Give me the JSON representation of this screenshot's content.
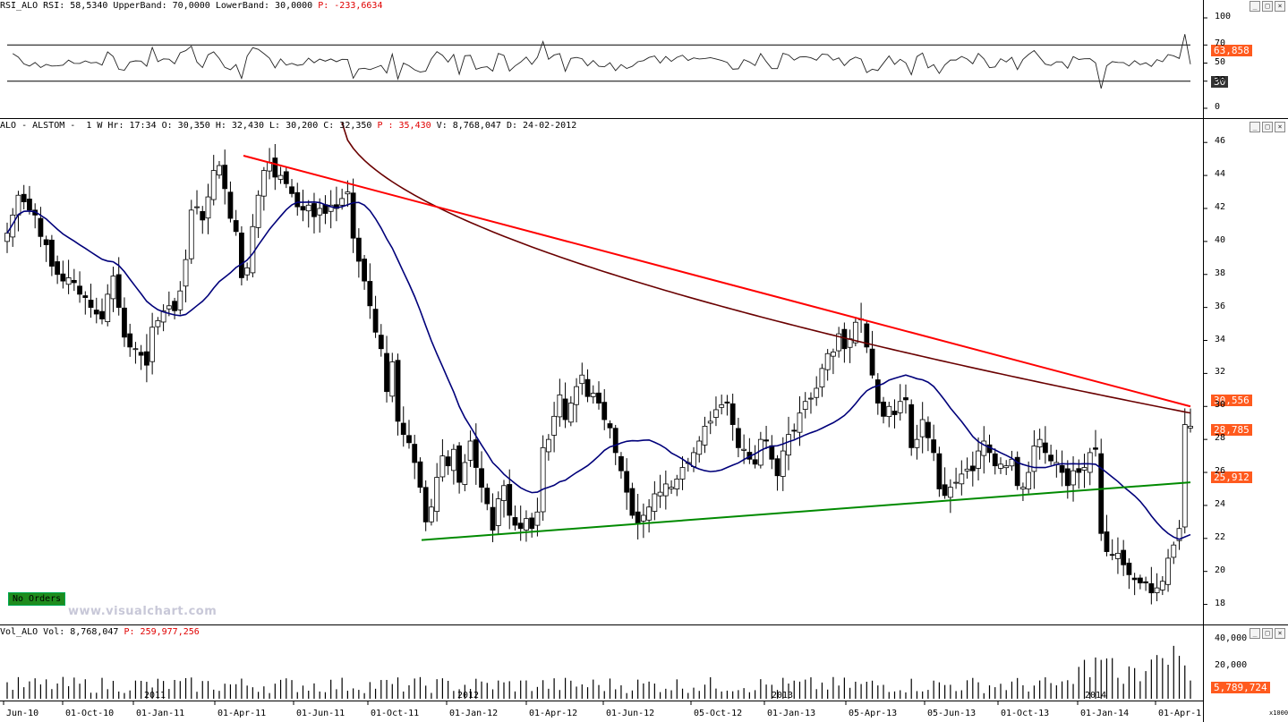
{
  "rsi_header": {
    "prefix": "RSI_ALO RSI: 58,5340 UpperBand: 70,0000 LowerBand: 30,0000 ",
    "p": "P: -233,6634"
  },
  "price_header": {
    "prefix": "ALO - ALSTOM -  1 W Hr: 17:34 O: 30,350 H: 32,430 L: 30,200 C: 32,350 ",
    "p": "P : 35,430",
    "suffix": " V: 8,768,047 D: 24-02-2012"
  },
  "vol_header": {
    "prefix": "Vol_ALO Vol: 8,768,047 ",
    "p": "P: 259,977,256"
  },
  "rsi_axis": [
    "100",
    "70",
    "50",
    "30",
    "0"
  ],
  "price_axis": [
    "46",
    "44",
    "42",
    "40",
    "38",
    "36",
    "34",
    "32",
    "30",
    "28",
    "26",
    "24",
    "22",
    "20",
    "18"
  ],
  "vol_axis": [
    "40,000",
    "20,000"
  ],
  "vol_unit": "x1000",
  "tags": {
    "rsi_value": "63,858",
    "rsi_band": "30",
    "price_ma200": "30,556",
    "price_last": "28,785",
    "price_ma": "25,912",
    "vol_value": "5,789,724"
  },
  "no_orders": "No Orders",
  "watermark": "www.visualchart.com",
  "x_labels": [
    "Jun-10",
    "01-Oct-10",
    "01-Jan-11",
    "01-Apr-11",
    "01-Jun-11",
    "01-Oct-11",
    "01-Jan-12",
    "01-Apr-12",
    "01-Jun-12",
    "05-Oct-12",
    "01-Jan-13",
    "05-Apr-13",
    "05-Jun-13",
    "01-Oct-13",
    "01-Jan-14",
    "01-Apr-1"
  ],
  "year_labels": [
    "2011",
    "2012",
    "2013",
    "2014"
  ],
  "colors": {
    "bull": "#ffffff",
    "bear": "#000000",
    "ma_fast": "#00007a",
    "ma_slow": "#6a0000",
    "trend_down": "#ff0000",
    "trend_up": "#008a00",
    "tag": "#ff5a1e"
  },
  "chart_data": {
    "type": "candlestick",
    "price_ylim": [
      17,
      46.5
    ],
    "price_weeks": 207,
    "closes": [
      40.5,
      41.6,
      42.8,
      42.4,
      41.9,
      41.6,
      40.3,
      39.8,
      38.5,
      38.0,
      37.6,
      37.8,
      37.5,
      36.8,
      36.6,
      36.0,
      35.6,
      35.3,
      36.8,
      37.9,
      36.0,
      34.2,
      33.6,
      33.5,
      33.1,
      32.5,
      34.8,
      35.2,
      35.8,
      36.1,
      35.8,
      37.0,
      38.9,
      41.9,
      42.1,
      41.3,
      42.7,
      44.3,
      44.6,
      43.2,
      41.4,
      40.6,
      37.8,
      38.4,
      40.9,
      42.8,
      44.3,
      44.8,
      43.9,
      44.0,
      43.5,
      42.9,
      42.1,
      41.9,
      42.2,
      41.5,
      42.0,
      41.7,
      42.2,
      42.0,
      42.6,
      43.0,
      40.2,
      38.8,
      37.6,
      36.1,
      34.5,
      33.5,
      30.9,
      32.7,
      29.1,
      28.3,
      27.8,
      26.6,
      25.1,
      23.0,
      23.9,
      25.7,
      27.0,
      26.4,
      27.4,
      25.4,
      26.6,
      27.9,
      26.3,
      25.1,
      24.1,
      22.5,
      24.4,
      25.2,
      23.4,
      22.8,
      22.6,
      23.2,
      22.6,
      23.6,
      27.5,
      28.0,
      29.4,
      30.7,
      29.2,
      30.2,
      31.2,
      31.9,
      30.6,
      30.8,
      30.2,
      29.2,
      28.7,
      27.2,
      26.1,
      24.8,
      23.4,
      22.9,
      23.4,
      23.9,
      24.7,
      24.8,
      25.3,
      25.1,
      25.6,
      26.3,
      26.6,
      27.2,
      27.9,
      28.8,
      29.1,
      29.8,
      30.1,
      30.2,
      28.9,
      27.5,
      27.4,
      26.8,
      26.5,
      28.0,
      27.9,
      26.8,
      25.8,
      27.3,
      28.3,
      28.5,
      29.6,
      30.3,
      30.5,
      31.1,
      32.3,
      33.2,
      33.3,
      34.4,
      33.5,
      34.1,
      35.1,
      35.3,
      33.6,
      31.9,
      30.2,
      29.4,
      30.0,
      29.5,
      30.3,
      30.4,
      27.5,
      28.0,
      29.2,
      28.1,
      27.2,
      25.0,
      24.6,
      25.1,
      25.4,
      25.9,
      26.2,
      26.1,
      27.3,
      27.9,
      27.2,
      26.4,
      26.5,
      26.4,
      26.8,
      25.2,
      25.1,
      26.0,
      27.6,
      28.0,
      27.2,
      26.7,
      26.6,
      26.0,
      25.2,
      26.1,
      26.0,
      26.3,
      27.2,
      27.4,
      22.3,
      21.2,
      21.0,
      21.1,
      20.4,
      19.8,
      19.5,
      19.3,
      19.3,
      18.7,
      19.0,
      19.4,
      20.8,
      21.6,
      22.6,
      28.9,
      28.8
    ]
  }
}
